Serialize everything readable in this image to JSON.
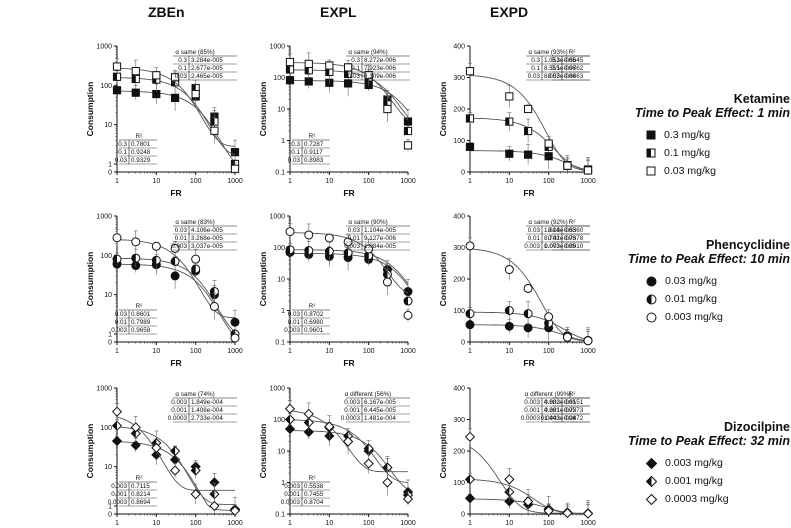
{
  "columns": [
    "ZBEn",
    "EXPL",
    "EXPD"
  ],
  "rows": [
    {
      "drug": "Ketamine",
      "tpe": "Time to Peak Effect: 1 min",
      "doses": [
        "0.3 mg/kg",
        "0.1 mg/kg",
        "0.03 mg/kg"
      ],
      "marker": "square"
    },
    {
      "drug": "Phencyclidine",
      "tpe": "Time to Peak Effect: 10 min",
      "doses": [
        "0.03 mg/kg",
        "0.01 mg/kg",
        "0.003 mg/kg"
      ],
      "marker": "circle"
    },
    {
      "drug": "Dizocilpine",
      "tpe": "Time to Peak Effect: 32 min",
      "doses": [
        "0.003 mg/kg",
        "0.001 mg/kg",
        "0.0003 mg/kg"
      ],
      "marker": "diamond"
    }
  ],
  "colors": {
    "ink": "#111111",
    "line": "#555555",
    "err": "#666666"
  },
  "chart_data": [
    {
      "type": "scatter",
      "row": 0,
      "col": 0,
      "title": "",
      "xlabel": "FR",
      "ylabel": "Consumption",
      "xscale": "log",
      "yscale": "log",
      "xticks": [
        "1",
        "10",
        "100",
        "1000"
      ],
      "yticks": [
        "0",
        "1",
        "10",
        "100",
        "1000"
      ],
      "ylim": [
        0,
        1000
      ],
      "alpha_label": "α same (85%)",
      "alpha_rows": [
        [
          "0.3",
          "3.284e-005"
        ],
        [
          "0.1",
          "2.677e-005"
        ],
        [
          "0.03",
          "2.465e-005"
        ]
      ],
      "r2_label": "R²",
      "r2_rows": [
        [
          "0.3",
          "0.7801"
        ],
        [
          "0.1",
          "0.9248"
        ],
        [
          "0.03",
          "0.9329"
        ]
      ],
      "series": [
        {
          "dose": "0.3",
          "fill": "full",
          "x": [
            1,
            3,
            10,
            30,
            100,
            300,
            1000
          ],
          "y": [
            75,
            65,
            60,
            48,
            52,
            16,
            2
          ],
          "q0": 72,
          "alpha": 3.284e-05
        },
        {
          "dose": "0.1",
          "fill": "half",
          "x": [
            1,
            3,
            10,
            30,
            100,
            300,
            1000
          ],
          "y": [
            165,
            145,
            140,
            120,
            85,
            12,
            1
          ],
          "q0": 160,
          "alpha": 2.677e-05
        },
        {
          "dose": "0.03",
          "fill": "empty",
          "x": [
            1,
            3,
            10,
            30,
            100,
            300,
            1000
          ],
          "y": [
            300,
            230,
            180,
            160,
            60,
            7,
            0.4
          ],
          "q0": 280,
          "alpha": 2.465e-05
        }
      ]
    },
    {
      "type": "scatter",
      "row": 0,
      "col": 1,
      "title": "",
      "xlabel": "FR",
      "ylabel": "Consumption",
      "xscale": "log",
      "yscale": "log",
      "xticks": [
        "1",
        "10",
        "100",
        "1000"
      ],
      "yticks": [
        "0.1",
        "1",
        "10",
        "100",
        "1000"
      ],
      "ylim": [
        0.1,
        1000
      ],
      "alpha_label": "α same (94%)",
      "alpha_rows": [
        [
          "0.3",
          "8.272e-006"
        ],
        [
          "0.1",
          "7.923e-006"
        ],
        [
          "0.03",
          "8.109e-006"
        ]
      ],
      "r2_label": "R²",
      "r2_rows": [
        [
          "0.3",
          "0.7287"
        ],
        [
          "0.1",
          "0.9117"
        ],
        [
          "0.03",
          "0.8983"
        ]
      ],
      "series": [
        {
          "dose": "0.3",
          "fill": "full",
          "x": [
            1,
            3,
            10,
            30,
            100,
            300,
            1000
          ],
          "y": [
            82,
            75,
            68,
            65,
            58,
            20,
            4
          ],
          "q0": 80,
          "alpha": 8.272e-06
        },
        {
          "dose": "0.1",
          "fill": "half",
          "x": [
            1,
            3,
            10,
            30,
            100,
            300,
            1000
          ],
          "y": [
            180,
            170,
            150,
            130,
            100,
            14,
            2
          ],
          "q0": 175,
          "alpha": 7.923e-06
        },
        {
          "dose": "0.03",
          "fill": "empty",
          "x": [
            1,
            3,
            10,
            30,
            100,
            300,
            1000
          ],
          "y": [
            310,
            270,
            240,
            210,
            120,
            10,
            0.7
          ],
          "q0": 300,
          "alpha": 8.109e-06
        }
      ]
    },
    {
      "type": "scatter",
      "row": 0,
      "col": 2,
      "title": "",
      "xlabel": "FR",
      "ylabel": "Consumption",
      "xscale": "log",
      "yscale": "linear",
      "xticks": [
        "1",
        "10",
        "100",
        "1000"
      ],
      "yticks": [
        "0",
        "100",
        "200",
        "300",
        "400"
      ],
      "ylim": [
        0,
        400
      ],
      "alpha_label": "α same (93%)",
      "alpha_rows": [
        [
          "0.3",
          "1.051e-005"
        ],
        [
          "0.1",
          "8.555e-006"
        ],
        [
          "0.03",
          "8.057e-006"
        ]
      ],
      "r2_label": "R²",
      "r2_rows": [
        [
          "0.3",
          "0.6645"
        ],
        [
          "0.1",
          "0.9762"
        ],
        [
          "0.03",
          "0.8463"
        ]
      ],
      "series": [
        {
          "dose": "0.3",
          "fill": "full",
          "x": [
            1,
            10,
            30,
            100,
            300,
            1000
          ],
          "y": [
            80,
            58,
            55,
            50,
            22,
            8
          ],
          "q0": 68,
          "alpha": 1.051e-05
        },
        {
          "dose": "0.1",
          "fill": "half",
          "x": [
            1,
            10,
            30,
            100,
            300,
            1000
          ],
          "y": [
            170,
            160,
            130,
            80,
            20,
            6
          ],
          "q0": 172,
          "alpha": 8.555e-06
        },
        {
          "dose": "0.03",
          "fill": "empty",
          "x": [
            1,
            10,
            30,
            100,
            300,
            1000
          ],
          "y": [
            320,
            240,
            200,
            90,
            20,
            5
          ],
          "q0": 310,
          "alpha": 8.057e-06
        }
      ]
    },
    {
      "type": "scatter",
      "row": 1,
      "col": 0,
      "title": "",
      "xlabel": "FR",
      "ylabel": "Consumption",
      "xscale": "log",
      "yscale": "log",
      "xticks": [
        "1",
        "10",
        "100",
        "1000"
      ],
      "yticks": [
        "0",
        "1",
        "10",
        "100",
        "1000"
      ],
      "ylim": [
        0,
        1000
      ],
      "alpha_label": "α same (83%)",
      "alpha_rows": [
        [
          "0.03",
          "4.106e-005"
        ],
        [
          "0.01",
          "3.268e-005"
        ],
        [
          "0.003",
          "3.037e-005"
        ]
      ],
      "r2_label": "R²",
      "r2_rows": [
        [
          "0.03",
          "0.8601"
        ],
        [
          "0.01",
          "0.7989"
        ],
        [
          "0.003",
          "0.9658"
        ]
      ],
      "series": [
        {
          "dose": "0.03",
          "fill": "full",
          "x": [
            1,
            3,
            10,
            30,
            100,
            300,
            1000
          ],
          "y": [
            60,
            55,
            58,
            30,
            40,
            10,
            2
          ],
          "q0": 60,
          "alpha": 4.106e-05
        },
        {
          "dose": "0.01",
          "fill": "half",
          "x": [
            1,
            3,
            10,
            30,
            100,
            300,
            1000
          ],
          "y": [
            80,
            85,
            75,
            70,
            45,
            12,
            1
          ],
          "q0": 85,
          "alpha": 3.268e-05
        },
        {
          "dose": "0.003",
          "fill": "empty",
          "x": [
            1,
            3,
            10,
            30,
            100,
            300,
            1000
          ],
          "y": [
            280,
            220,
            170,
            150,
            80,
            5,
            0.5
          ],
          "q0": 260,
          "alpha": 3.037e-05
        }
      ]
    },
    {
      "type": "scatter",
      "row": 1,
      "col": 1,
      "title": "",
      "xlabel": "FR",
      "ylabel": "Consumption",
      "xscale": "log",
      "yscale": "log",
      "xticks": [
        "1",
        "10",
        "100",
        "1000"
      ],
      "yticks": [
        "0.1",
        "1",
        "10",
        "100",
        "1000"
      ],
      "ylim": [
        0.1,
        1000
      ],
      "alpha_label": "α same (90%)",
      "alpha_rows": [
        [
          "0.03",
          "1.104e-005"
        ],
        [
          "0.01",
          "9.127e-006"
        ],
        [
          "0.003",
          "1.084e-005"
        ]
      ],
      "r2_label": "R²",
      "r2_rows": [
        [
          "0.03",
          "0.8702"
        ],
        [
          "0.01",
          "0.6980"
        ],
        [
          "0.003",
          "0.9601"
        ]
      ],
      "series": [
        {
          "dose": "0.03",
          "fill": "full",
          "x": [
            1,
            3,
            10,
            30,
            100,
            300,
            1000
          ],
          "y": [
            70,
            60,
            52,
            48,
            42,
            20,
            4
          ],
          "q0": 65,
          "alpha": 1.104e-05
        },
        {
          "dose": "0.01",
          "fill": "half",
          "x": [
            1,
            3,
            10,
            30,
            100,
            300,
            1000
          ],
          "y": [
            85,
            80,
            75,
            68,
            55,
            14,
            2
          ],
          "q0": 85,
          "alpha": 9.127e-06
        },
        {
          "dose": "0.003",
          "fill": "empty",
          "x": [
            1,
            3,
            10,
            30,
            100,
            300,
            1000
          ],
          "y": [
            320,
            250,
            200,
            150,
            90,
            8,
            0.7
          ],
          "q0": 300,
          "alpha": 1.084e-05
        }
      ]
    },
    {
      "type": "scatter",
      "row": 1,
      "col": 2,
      "title": "",
      "xlabel": "FR",
      "ylabel": "Consumption",
      "xscale": "log",
      "yscale": "linear",
      "xticks": [
        "1",
        "10",
        "100",
        "1000"
      ],
      "yticks": [
        "0",
        "100",
        "200",
        "300",
        "400"
      ],
      "ylim": [
        0,
        400
      ],
      "alpha_label": "α same (92%)",
      "alpha_rows": [
        [
          "0.03",
          "1.614e-005"
        ],
        [
          "0.01",
          "8.742e-006"
        ],
        [
          "0.003",
          "1.073e-005"
        ]
      ],
      "r2_label": "R²",
      "r2_rows": [
        [
          "0.03",
          "0.6360"
        ],
        [
          "0.01",
          "0.7378"
        ],
        [
          "0.003",
          "0.8910"
        ]
      ],
      "series": [
        {
          "dose": "0.03",
          "fill": "full",
          "x": [
            1,
            10,
            30,
            100,
            300,
            1000
          ],
          "y": [
            55,
            50,
            45,
            45,
            20,
            5
          ],
          "q0": 55,
          "alpha": 1.614e-05
        },
        {
          "dose": "0.01",
          "fill": "half",
          "x": [
            1,
            10,
            30,
            100,
            300,
            1000
          ],
          "y": [
            90,
            100,
            90,
            60,
            15,
            4
          ],
          "q0": 95,
          "alpha": 8.742e-06
        },
        {
          "dose": "0.003",
          "fill": "empty",
          "x": [
            1,
            10,
            30,
            100,
            300,
            1000
          ],
          "y": [
            305,
            230,
            170,
            80,
            15,
            4
          ],
          "q0": 300,
          "alpha": 1.073e-05
        }
      ]
    },
    {
      "type": "scatter",
      "row": 2,
      "col": 0,
      "title": "",
      "xlabel": "FR",
      "ylabel": "Consumption",
      "xscale": "log",
      "yscale": "log",
      "xticks": [
        "1",
        "10",
        "100",
        "1000"
      ],
      "yticks": [
        "0",
        "1",
        "10",
        "100",
        "1000"
      ],
      "ylim": [
        0,
        1000
      ],
      "alpha_label": "α same (74%)",
      "alpha_rows": [
        [
          "0.003",
          "1.849e-004"
        ],
        [
          "0.001",
          "1.408e-004"
        ],
        [
          "0.0003",
          "2.733e-004"
        ]
      ],
      "r2_label": "R²",
      "r2_rows": [
        [
          "0.003",
          "0.7115"
        ],
        [
          "0.001",
          "0.8214"
        ],
        [
          "0.0003",
          "0.8694"
        ]
      ],
      "series": [
        {
          "dose": "0.003",
          "fill": "full",
          "x": [
            1,
            3,
            10,
            30,
            100,
            300,
            1000
          ],
          "y": [
            45,
            35,
            20,
            15,
            10,
            4,
            0.6
          ],
          "q0": 45,
          "alpha": 0.0001849
        },
        {
          "dose": "0.001",
          "fill": "half",
          "x": [
            1,
            3,
            10,
            30,
            100,
            300,
            1000
          ],
          "y": [
            110,
            70,
            40,
            25,
            8,
            2,
            0.5
          ],
          "q0": 110,
          "alpha": 0.0001408
        },
        {
          "dose": "0.0003",
          "fill": "empty",
          "x": [
            1,
            3,
            10,
            30,
            100,
            300,
            1000
          ],
          "y": [
            250,
            100,
            30,
            8,
            2,
            1,
            0.4
          ],
          "q0": 250,
          "alpha": 0.0002733
        }
      ]
    },
    {
      "type": "scatter",
      "row": 2,
      "col": 1,
      "title": "",
      "xlabel": "FR",
      "ylabel": "Consumption",
      "xscale": "log",
      "yscale": "log",
      "xticks": [
        "1",
        "10",
        "100",
        "1000"
      ],
      "yticks": [
        "0.1",
        "1",
        "10",
        "100",
        "1000"
      ],
      "ylim": [
        0.1,
        1000
      ],
      "alpha_label": "α different (56%)",
      "alpha_rows": [
        [
          "0.003",
          "6.167e-005"
        ],
        [
          "0.001",
          "6.445e-005"
        ],
        [
          "0.0003",
          "1.481e-004"
        ]
      ],
      "r2_label": "R²",
      "r2_rows": [
        [
          "0.003",
          "0.5538"
        ],
        [
          "0.001",
          "0.7455"
        ],
        [
          "0.0003",
          "0.8704"
        ]
      ],
      "series": [
        {
          "dose": "0.003",
          "fill": "full",
          "x": [
            1,
            3,
            10,
            30,
            100,
            300,
            1000
          ],
          "y": [
            50,
            40,
            30,
            20,
            10,
            3,
            0.5
          ],
          "q0": 45,
          "alpha": 6.167e-05
        },
        {
          "dose": "0.001",
          "fill": "half",
          "x": [
            1,
            3,
            10,
            30,
            100,
            300,
            1000
          ],
          "y": [
            100,
            80,
            55,
            30,
            12,
            3,
            0.4
          ],
          "q0": 100,
          "alpha": 6.445e-05
        },
        {
          "dose": "0.0003",
          "fill": "empty",
          "x": [
            1,
            3,
            10,
            30,
            100,
            300,
            1000
          ],
          "y": [
            220,
            150,
            60,
            20,
            4,
            1,
            0.3
          ],
          "q0": 220,
          "alpha": 0.0001481
        }
      ]
    },
    {
      "type": "scatter",
      "row": 2,
      "col": 2,
      "title": "",
      "xlabel": "FR",
      "ylabel": "Consumption",
      "xscale": "log",
      "yscale": "linear",
      "xticks": [
        "1",
        "10",
        "100",
        "1000"
      ],
      "yticks": [
        "0",
        "100",
        "200",
        "300",
        "400"
      ],
      "ylim": [
        0,
        400
      ],
      "alpha_label": "α different (99%)",
      "alpha_rows": [
        [
          "0.003",
          "4.882e-005"
        ],
        [
          "0.001",
          "4.381e-005"
        ],
        [
          "0.0003",
          "1.443e-004"
        ]
      ],
      "r2_label": "R²",
      "r2_rows": [
        [
          "0.003",
          "0.6151"
        ],
        [
          "0.001",
          "0.7273"
        ],
        [
          "0.0003",
          "0.9872"
        ]
      ],
      "series": [
        {
          "dose": "0.003",
          "fill": "full",
          "x": [
            1,
            10,
            30,
            100,
            300,
            1000
          ],
          "y": [
            50,
            40,
            30,
            15,
            5,
            2
          ],
          "q0": 48,
          "alpha": 4.882e-05
        },
        {
          "dose": "0.001",
          "fill": "half",
          "x": [
            1,
            10,
            30,
            100,
            300,
            1000
          ],
          "y": [
            110,
            70,
            40,
            15,
            4,
            2
          ],
          "q0": 112,
          "alpha": 4.381e-05
        },
        {
          "dose": "0.0003",
          "fill": "empty",
          "x": [
            1,
            10,
            30,
            100,
            300,
            1000
          ],
          "y": [
            245,
            110,
            40,
            10,
            3,
            1
          ],
          "q0": 250,
          "alpha": 0.0001443
        }
      ]
    }
  ]
}
